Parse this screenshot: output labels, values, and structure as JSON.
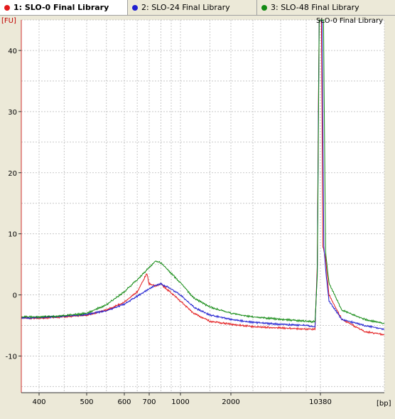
{
  "tabs": [
    {
      "label": "1: SLO-0 Final Library",
      "color": "#e31a1c",
      "active": true
    },
    {
      "label": "2: SLO-24 Final Library",
      "color": "#1f1fd0",
      "active": false
    },
    {
      "label": "3: SLO-48 Final Library",
      "color": "#138a13",
      "active": false
    }
  ],
  "chart_data": {
    "type": "line",
    "title": "SLO-0 Final Library",
    "xlabel": "[bp]",
    "ylabel": "[FU]",
    "x_ticks": [
      "400",
      "500",
      "600",
      "700",
      "1000",
      "2000",
      "10380"
    ],
    "y_ticks": [
      -10,
      0,
      10,
      20,
      30,
      40
    ],
    "ylim": [
      -16,
      45
    ],
    "grid": true,
    "series": [
      {
        "name": "1: SLO-0 Final Library",
        "color": "#e31a1c",
        "points": [
          [
            350,
            -3.8
          ],
          [
            400,
            -3.8
          ],
          [
            450,
            -3.6
          ],
          [
            500,
            -3.3
          ],
          [
            550,
            -2.5
          ],
          [
            600,
            -1.2
          ],
          [
            650,
            0.5
          ],
          [
            690,
            3.5
          ],
          [
            700,
            1.8
          ],
          [
            750,
            1.5
          ],
          [
            800,
            1.8
          ],
          [
            900,
            0.3
          ],
          [
            1000,
            -1
          ],
          [
            1200,
            -3
          ],
          [
            1500,
            -4.3
          ],
          [
            2000,
            -4.8
          ],
          [
            3000,
            -5.2
          ],
          [
            5000,
            -5.4
          ],
          [
            8000,
            -5.6
          ],
          [
            9400,
            -5.6
          ],
          [
            9800,
            5
          ],
          [
            10000,
            30
          ],
          [
            10150,
            45
          ],
          [
            10350,
            45
          ],
          [
            10450,
            45
          ],
          [
            10550,
            8
          ],
          [
            10750,
            6
          ],
          [
            11000,
            0
          ],
          [
            12000,
            -4
          ],
          [
            14000,
            -6
          ],
          [
            16000,
            -6.5
          ]
        ]
      },
      {
        "name": "2: SLO-24 Final Library",
        "color": "#1f1fd0",
        "points": [
          [
            350,
            -3.8
          ],
          [
            400,
            -3.7
          ],
          [
            450,
            -3.5
          ],
          [
            500,
            -3.2
          ],
          [
            550,
            -2.6
          ],
          [
            600,
            -1.5
          ],
          [
            650,
            -0.2
          ],
          [
            700,
            1
          ],
          [
            750,
            1.6
          ],
          [
            800,
            1.8
          ],
          [
            900,
            1
          ],
          [
            1000,
            0
          ],
          [
            1200,
            -2
          ],
          [
            1500,
            -3.3
          ],
          [
            2000,
            -4
          ],
          [
            3000,
            -4.5
          ],
          [
            5000,
            -4.8
          ],
          [
            8000,
            -5
          ],
          [
            9400,
            -5.2
          ],
          [
            9800,
            4
          ],
          [
            10000,
            28
          ],
          [
            10150,
            45
          ],
          [
            10350,
            45
          ],
          [
            10500,
            45
          ],
          [
            10620,
            8
          ],
          [
            10800,
            3
          ],
          [
            11000,
            -1
          ],
          [
            12000,
            -4
          ],
          [
            14000,
            -5
          ],
          [
            16000,
            -5.6
          ]
        ]
      },
      {
        "name": "3: SLO-48 Final Library",
        "color": "#138a13",
        "points": [
          [
            350,
            -3.6
          ],
          [
            400,
            -3.6
          ],
          [
            450,
            -3.4
          ],
          [
            500,
            -3
          ],
          [
            550,
            -1.6
          ],
          [
            600,
            0.5
          ],
          [
            650,
            2.5
          ],
          [
            700,
            4.5
          ],
          [
            750,
            5.5
          ],
          [
            800,
            5.3
          ],
          [
            900,
            3.5
          ],
          [
            1000,
            2
          ],
          [
            1200,
            -0.5
          ],
          [
            1500,
            -2
          ],
          [
            2000,
            -3
          ],
          [
            3000,
            -3.6
          ],
          [
            5000,
            -4
          ],
          [
            8000,
            -4.3
          ],
          [
            9400,
            -4.4
          ],
          [
            9800,
            3
          ],
          [
            10000,
            25
          ],
          [
            10150,
            45
          ],
          [
            10400,
            45
          ],
          [
            10600,
            45
          ],
          [
            10750,
            7
          ],
          [
            11000,
            2
          ],
          [
            12000,
            -2.5
          ],
          [
            14000,
            -4
          ],
          [
            16000,
            -4.7
          ]
        ]
      }
    ]
  }
}
